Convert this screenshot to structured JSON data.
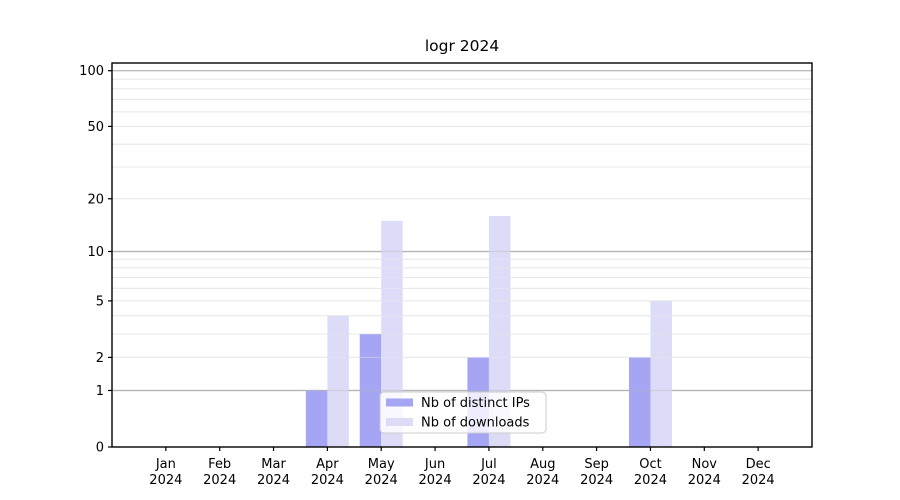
{
  "title": "logr 2024",
  "chart_data": {
    "type": "bar",
    "title": "logr 2024",
    "categories": [
      "Jan 2024",
      "Feb 2024",
      "Mar 2024",
      "Apr 2024",
      "May 2024",
      "Jun 2024",
      "Jul 2024",
      "Aug 2024",
      "Sep 2024",
      "Oct 2024",
      "Nov 2024",
      "Dec 2024"
    ],
    "series": [
      {
        "name": "Nb of distinct IPs",
        "color": "#a5a5f3",
        "values": [
          0,
          0,
          0,
          1,
          3,
          0,
          2,
          0,
          0,
          2,
          0,
          0
        ]
      },
      {
        "name": "Nb of downloads",
        "color": "#dcdcf8",
        "values": [
          0,
          0,
          0,
          4,
          15,
          0,
          16,
          0,
          0,
          5,
          0,
          0
        ]
      }
    ],
    "xlabel": "",
    "ylabel": "",
    "yscale": "log1p",
    "ylim": [
      0,
      110
    ],
    "y_tick_values": [
      0,
      1,
      2,
      5,
      10,
      20,
      50,
      100
    ],
    "y_major_gridlines": [
      1,
      10,
      100
    ],
    "y_minor_gridlines": [
      2,
      3,
      4,
      5,
      6,
      7,
      8,
      9,
      20,
      30,
      40,
      50,
      60,
      70,
      80,
      90
    ],
    "grid": true,
    "legend": {
      "position": "inside-bottom-center",
      "items": [
        "Nb of distinct IPs",
        "Nb of downloads"
      ]
    }
  },
  "colors": {
    "background": "#ffffff",
    "bar_ips": "#a5a5f3",
    "bar_downloads": "#dcdcf8",
    "grid_major": "#b5b5b5",
    "grid_minor": "#e8e8e8",
    "spine": "#000000",
    "text": "#000000",
    "legend_border": "#cccccc",
    "legend_bg": "#ffffff"
  }
}
